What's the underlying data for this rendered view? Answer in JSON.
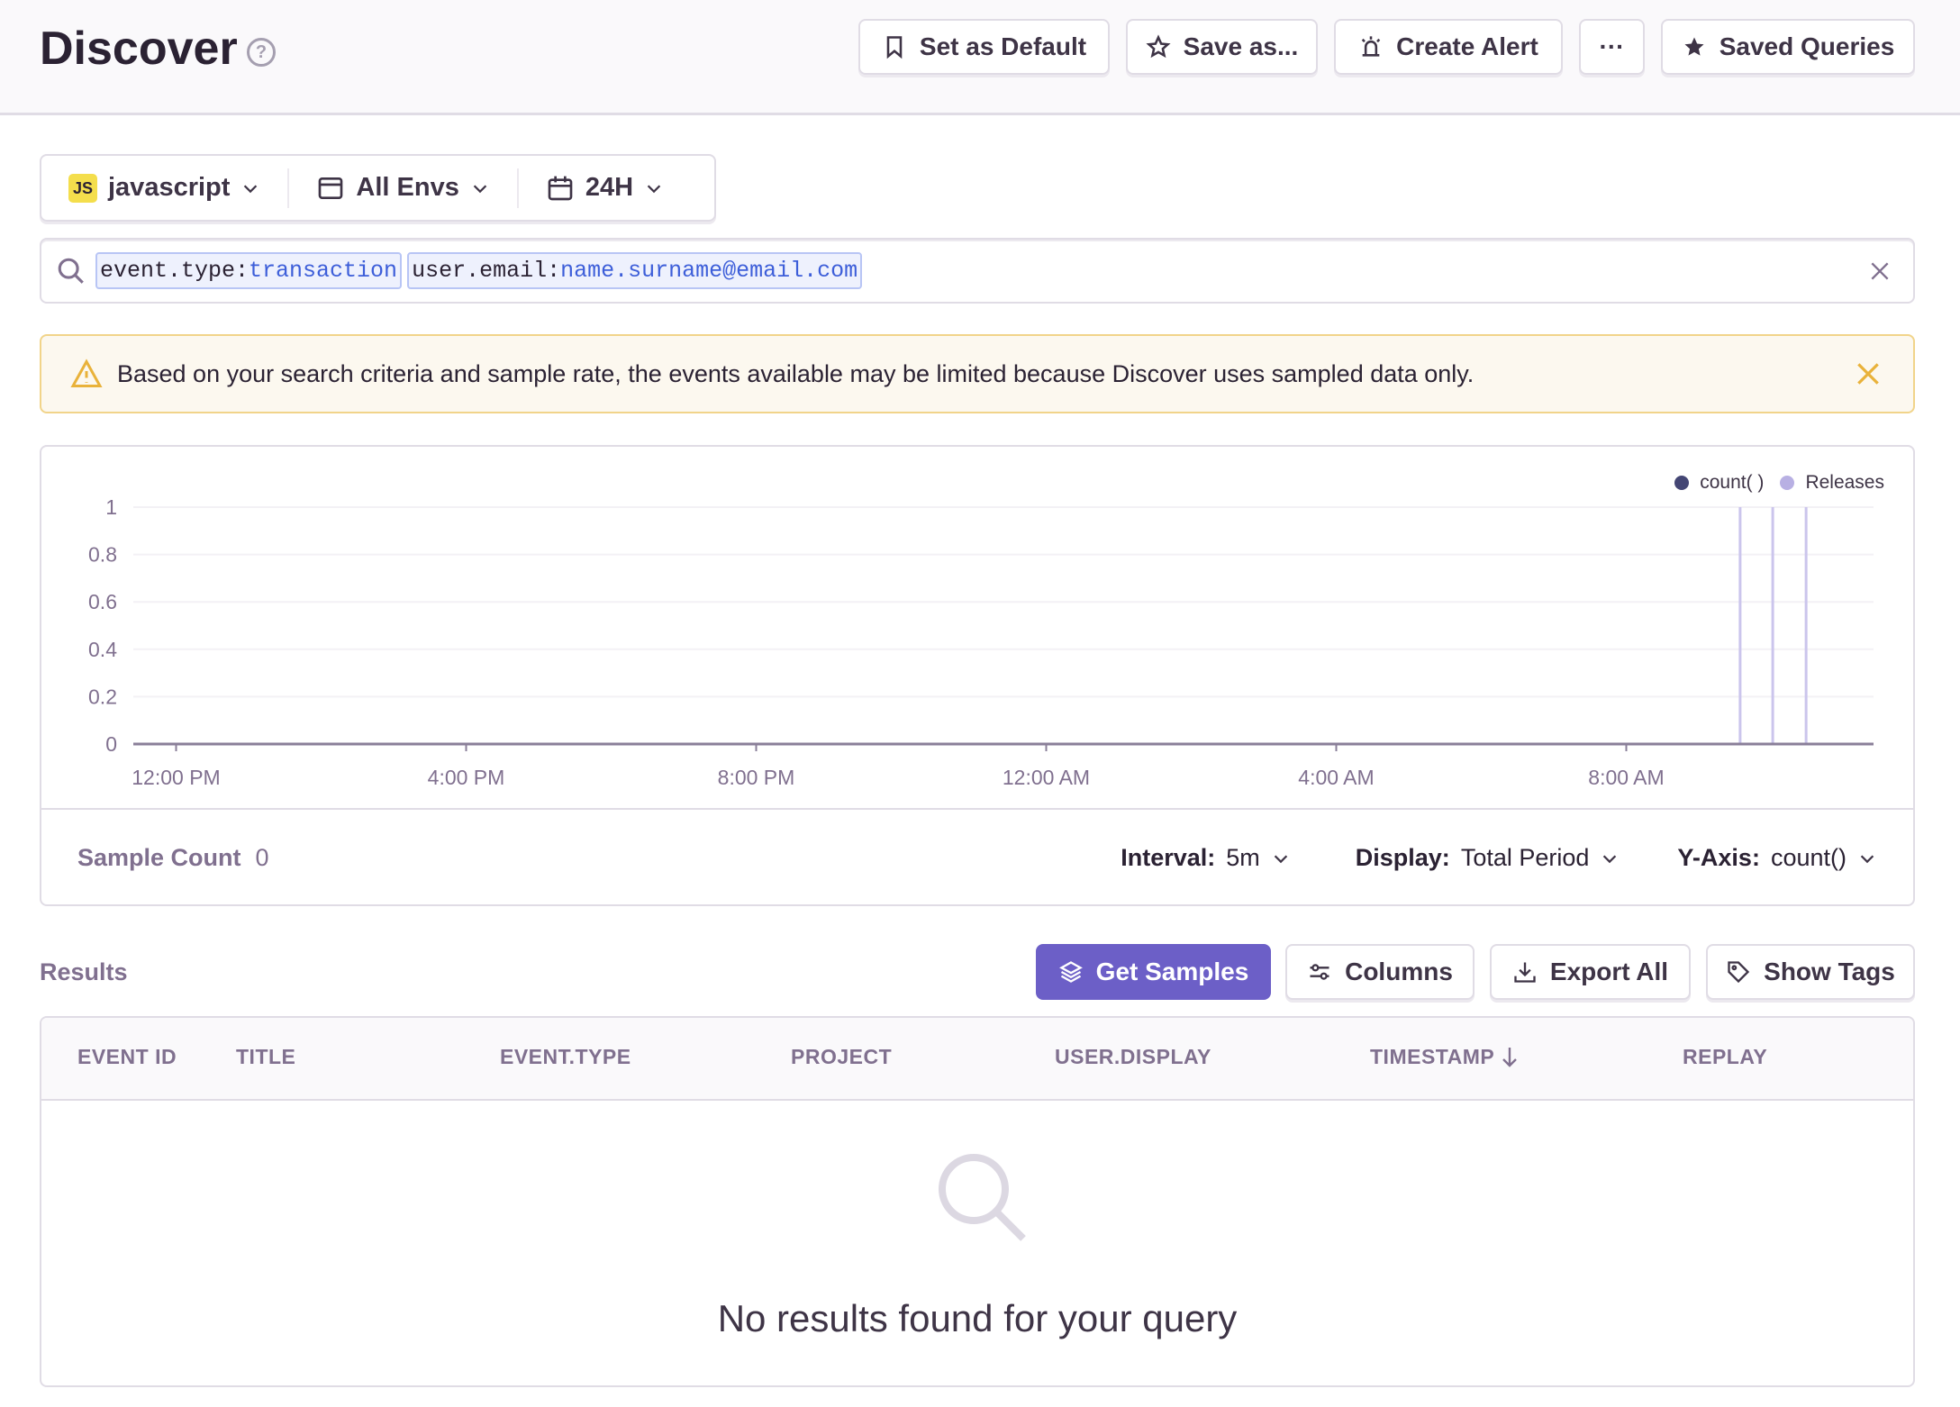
{
  "header": {
    "title": "Discover",
    "help_icon": "question-circle-icon",
    "buttons": [
      {
        "label": "Set as Default",
        "icon": "bookmark-icon"
      },
      {
        "label": "Save as...",
        "icon": "star-outline-icon"
      },
      {
        "label": "Create Alert",
        "icon": "siren-icon"
      },
      {
        "label": "···",
        "icon": "ellipsis-icon"
      },
      {
        "label": "Saved Queries",
        "icon": "star-filled-icon"
      }
    ]
  },
  "filters": {
    "project": {
      "badge": "JS",
      "label": "javascript"
    },
    "environment": "All Envs",
    "period": "24H"
  },
  "search": {
    "tokens": [
      {
        "key": "event.type:",
        "value": "transaction"
      },
      {
        "key": "user.email:",
        "value": "name.surname@email.com"
      }
    ]
  },
  "alert": {
    "message": "Based on your search criteria and sample rate, the events available may be limited because Discover uses sampled data only.",
    "color": "#e9b23a"
  },
  "chart_data": {
    "type": "line",
    "legend": [
      {
        "name": "count( )",
        "color": "#444674"
      },
      {
        "name": "Releases",
        "color": "#b8b0e3"
      }
    ],
    "legend_placement": "top-right",
    "y_ticks": [
      "0",
      "0.2",
      "0.4",
      "0.6",
      "0.8",
      "1"
    ],
    "ylim": [
      0,
      1
    ],
    "x_ticks": [
      "12:00 PM",
      "4:00 PM",
      "8:00 PM",
      "12:00 AM",
      "4:00 AM",
      "8:00 AM"
    ],
    "x_range_hours": [
      -0.59,
      23.41
    ],
    "series": [
      {
        "name": "count( )",
        "values": "all 0"
      }
    ],
    "releases_hours_after_noon": [
      21.57,
      22.02,
      22.48
    ],
    "grid": true
  },
  "footer": {
    "sample_label": "Sample Count",
    "sample_value": "0",
    "interval_label": "Interval:",
    "interval_value": "5m",
    "display_label": "Display:",
    "display_value": "Total Period",
    "yaxis_label": "Y-Axis:",
    "yaxis_value": "count()"
  },
  "results": {
    "label": "Results",
    "buttons": {
      "samples": "Get Samples",
      "columns": "Columns",
      "export": "Export All",
      "tags": "Show Tags"
    },
    "accent": "#6c5fc7",
    "columns": [
      "EVENT ID",
      "TITLE",
      "EVENT.TYPE",
      "PROJECT",
      "USER.DISPLAY",
      "TIMESTAMP",
      "REPLAY"
    ],
    "empty": "No results found for your query"
  }
}
